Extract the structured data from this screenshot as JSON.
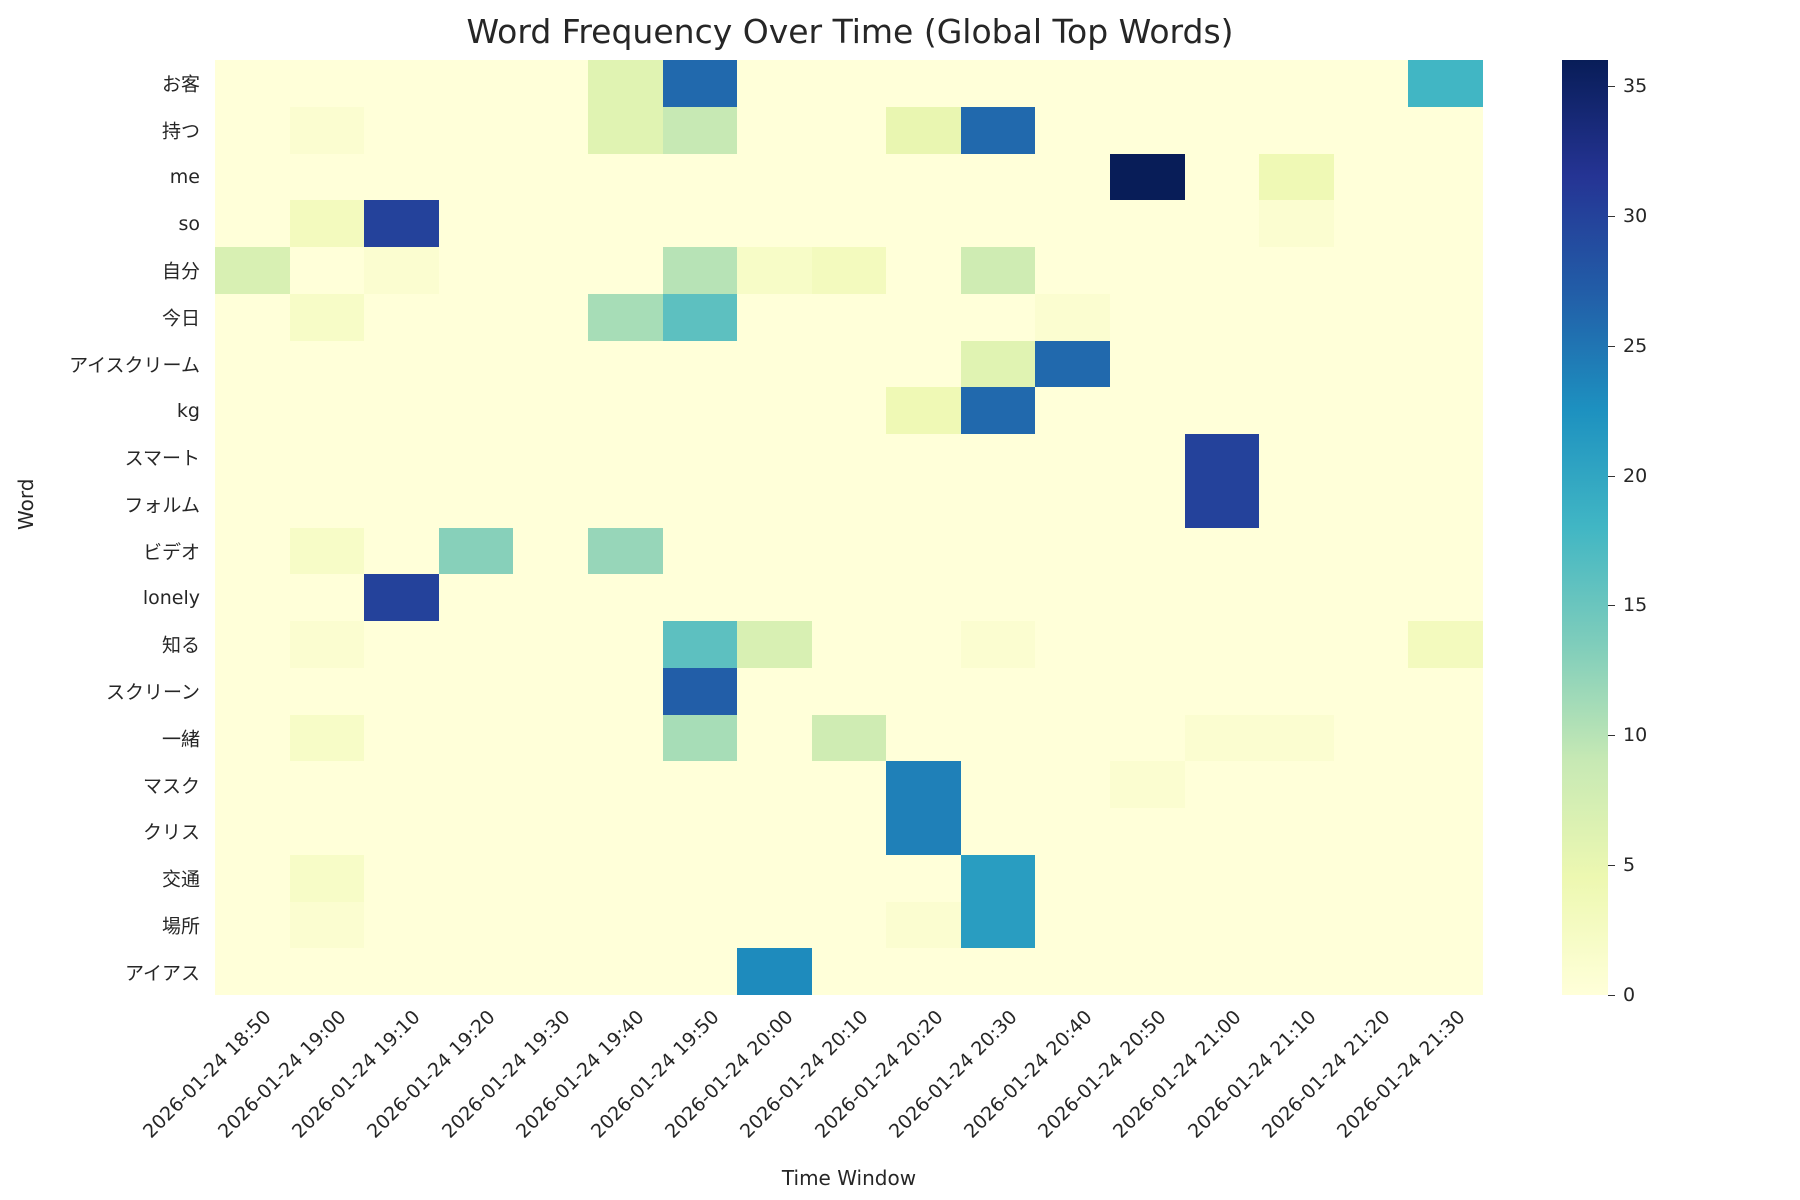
{
  "chart_data": {
    "type": "heatmap",
    "title": "Word Frequency Over Time (Global Top Words)",
    "xlabel": "Time Window",
    "ylabel": "Word",
    "colormap": "YlGnBu",
    "colorbar": {
      "min": 0,
      "max": 36,
      "ticks": [
        0,
        5,
        10,
        15,
        20,
        25,
        30,
        35
      ]
    },
    "x": [
      "2026-01-24 18:50",
      "2026-01-24 19:00",
      "2026-01-24 19:10",
      "2026-01-24 19:20",
      "2026-01-24 19:30",
      "2026-01-24 19:40",
      "2026-01-24 19:50",
      "2026-01-24 20:00",
      "2026-01-24 20:10",
      "2026-01-24 20:20",
      "2026-01-24 20:30",
      "2026-01-24 20:40",
      "2026-01-24 20:50",
      "2026-01-24 21:00",
      "2026-01-24 21:10",
      "2026-01-24 21:20",
      "2026-01-24 21:30"
    ],
    "y": [
      "お客",
      "持つ",
      "me",
      "so",
      "自分",
      "今日",
      "アイスクリーム",
      "kg",
      "スマート",
      "フォルム",
      "ビデオ",
      "lonely",
      "知る",
      "スクリーン",
      "一緒",
      "マスク",
      "クリス",
      "交通",
      "場所",
      "アイアス"
    ],
    "values": [
      [
        0,
        0,
        0,
        0,
        0,
        6,
        26,
        0,
        0,
        0,
        0,
        0,
        0,
        0,
        0,
        0,
        18
      ],
      [
        0,
        1,
        0,
        0,
        0,
        6,
        9,
        0,
        0,
        5,
        26,
        0,
        0,
        0,
        0,
        0,
        0
      ],
      [
        0,
        0,
        0,
        0,
        0,
        0,
        0,
        0,
        0,
        0,
        0,
        0,
        36,
        0,
        4,
        0,
        0
      ],
      [
        0,
        3,
        30,
        0,
        0,
        0,
        0,
        0,
        0,
        0,
        0,
        0,
        0,
        0,
        1,
        0,
        0
      ],
      [
        7,
        0,
        1,
        0,
        0,
        0,
        10,
        2,
        3,
        0,
        8,
        0,
        0,
        0,
        0,
        0,
        0
      ],
      [
        0,
        2,
        0,
        0,
        0,
        11,
        16,
        0,
        0,
        0,
        0,
        1,
        0,
        0,
        0,
        0,
        0
      ],
      [
        0,
        0,
        0,
        0,
        0,
        0,
        0,
        0,
        0,
        0,
        6,
        26,
        0,
        0,
        0,
        0,
        0
      ],
      [
        0,
        0,
        0,
        0,
        0,
        0,
        0,
        0,
        0,
        4,
        26,
        0,
        0,
        0,
        0,
        0,
        0
      ],
      [
        0,
        0,
        0,
        0,
        0,
        0,
        0,
        0,
        0,
        0,
        0,
        0,
        0,
        30,
        0,
        0,
        0
      ],
      [
        0,
        0,
        0,
        0,
        0,
        0,
        0,
        0,
        0,
        0,
        0,
        0,
        0,
        30,
        0,
        0,
        0
      ],
      [
        0,
        2,
        0,
        13,
        0,
        12,
        0,
        0,
        0,
        0,
        0,
        0,
        0,
        0,
        0,
        0,
        0
      ],
      [
        0,
        0,
        30,
        0,
        0,
        0,
        0,
        0,
        0,
        0,
        0,
        0,
        0,
        0,
        0,
        0,
        0
      ],
      [
        0,
        1,
        0,
        0,
        0,
        0,
        16,
        7,
        0,
        0,
        1,
        0,
        0,
        0,
        0,
        0,
        3
      ],
      [
        0,
        0,
        0,
        0,
        0,
        0,
        27,
        0,
        0,
        0,
        0,
        0,
        0,
        0,
        0,
        0,
        0
      ],
      [
        0,
        2,
        0,
        0,
        0,
        0,
        11,
        0,
        8,
        0,
        0,
        0,
        0,
        1,
        1,
        0,
        0
      ],
      [
        0,
        0,
        0,
        0,
        0,
        0,
        0,
        0,
        0,
        24,
        0,
        0,
        1,
        0,
        0,
        0,
        0
      ],
      [
        0,
        0,
        0,
        0,
        0,
        0,
        0,
        0,
        0,
        24,
        0,
        0,
        0,
        0,
        0,
        0,
        0
      ],
      [
        0,
        2,
        0,
        0,
        0,
        0,
        0,
        0,
        0,
        0,
        21,
        0,
        0,
        0,
        0,
        0,
        0
      ],
      [
        0,
        1,
        0,
        0,
        0,
        0,
        0,
        0,
        0,
        1,
        21,
        0,
        0,
        0,
        0,
        0,
        0
      ],
      [
        0,
        0,
        0,
        0,
        0,
        0,
        0,
        23,
        0,
        0,
        0,
        0,
        0,
        0,
        0,
        0,
        0
      ]
    ]
  },
  "colors": {
    "stops": [
      "#ffffd9",
      "#edf8b1",
      "#c7e9b4",
      "#7fcdbb",
      "#41b6c4",
      "#1d91c0",
      "#225ea8",
      "#253494",
      "#081d58"
    ]
  }
}
